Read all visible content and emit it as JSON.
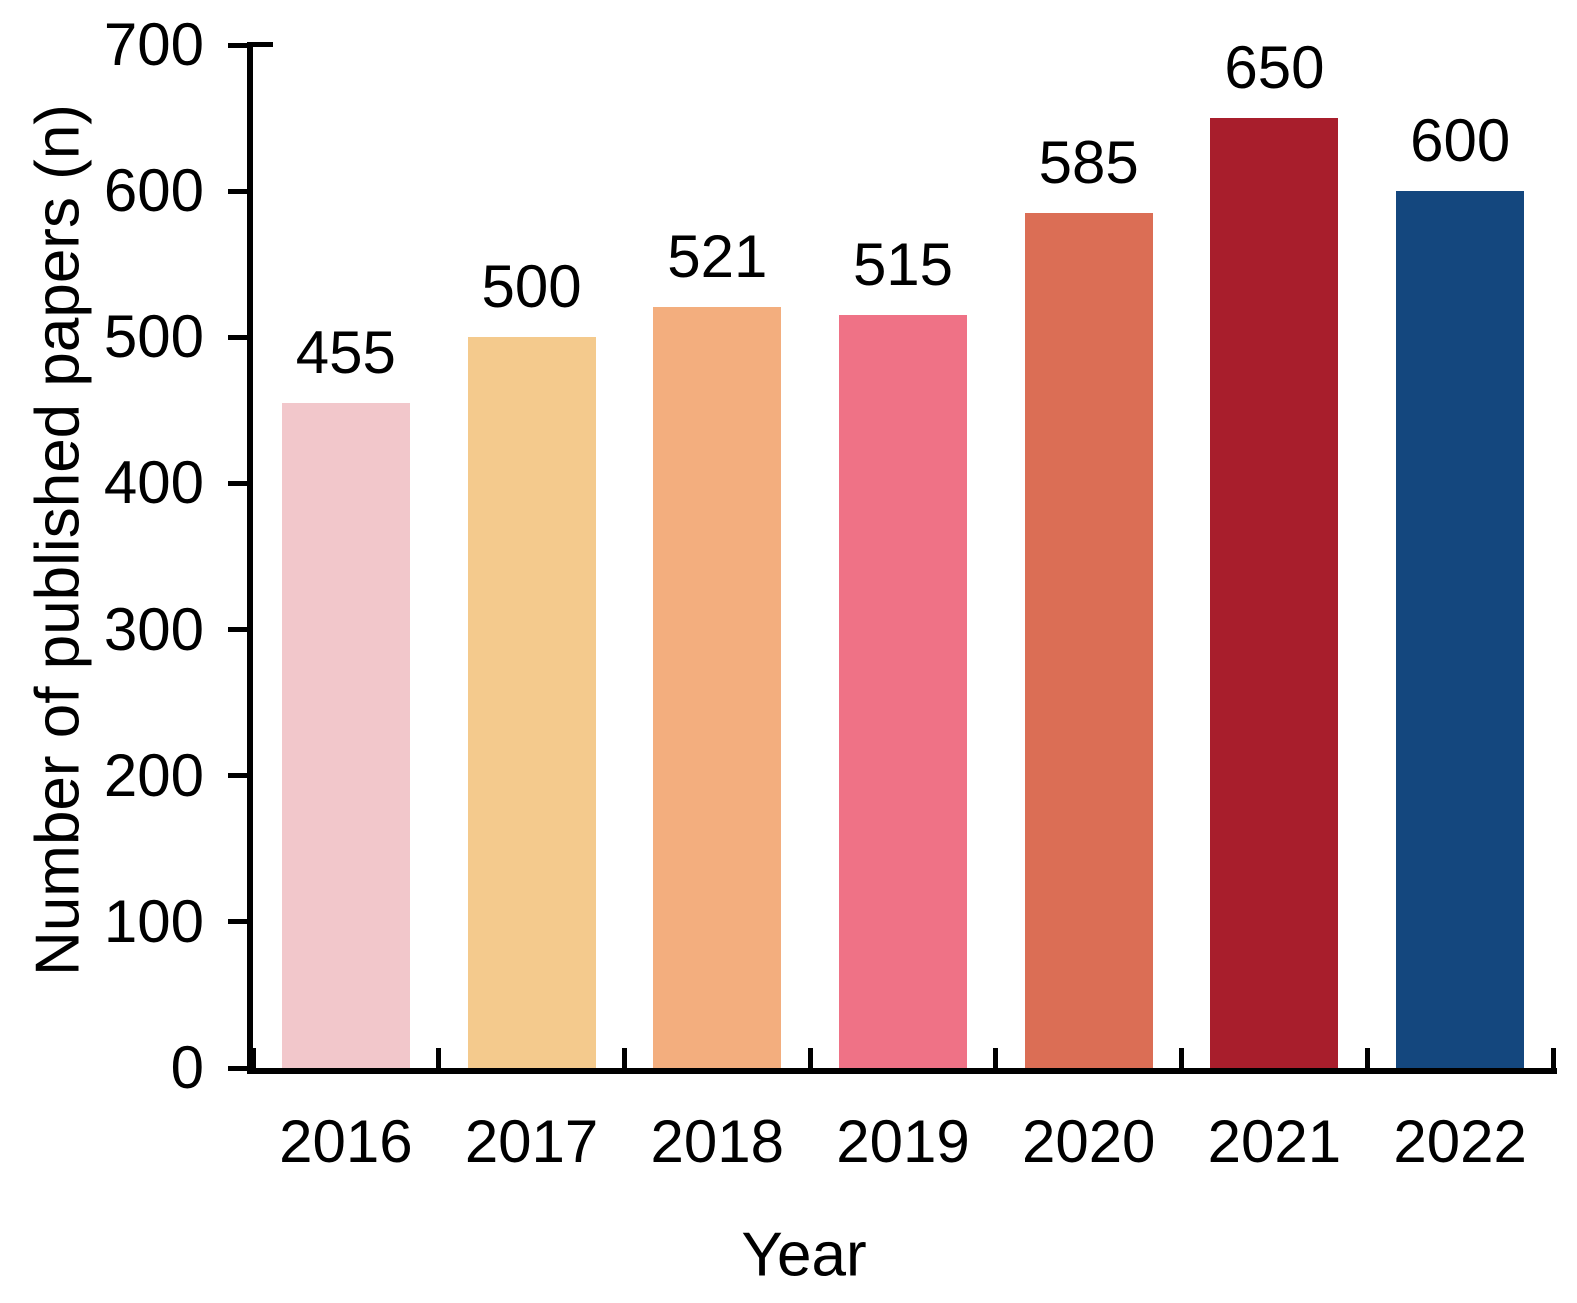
{
  "chart_data": {
    "type": "bar",
    "title": "",
    "xlabel": "Year",
    "ylabel": "Number of published papers (n)",
    "categories": [
      "2016",
      "2017",
      "2018",
      "2019",
      "2020",
      "2021",
      "2022"
    ],
    "values": [
      455,
      500,
      521,
      515,
      585,
      650,
      600
    ],
    "data_labels": [
      "455",
      "500",
      "521",
      "515",
      "585",
      "650",
      "600"
    ],
    "bar_colors": [
      "#F2C7CB",
      "#F4CA8D",
      "#F3AE7E",
      "#EF7286",
      "#DB6E55",
      "#A81E2C",
      "#14477E"
    ],
    "ylim": [
      0,
      700
    ],
    "yticks": [
      0,
      100,
      200,
      300,
      400,
      500,
      600,
      700
    ],
    "ytick_labels": [
      "0",
      "100",
      "200",
      "300",
      "400",
      "500",
      "600",
      "700"
    ],
    "grid": false,
    "legend": "none",
    "axis_color": "#000000",
    "text_color": "#000000",
    "background_color": "#FFFFFF"
  }
}
